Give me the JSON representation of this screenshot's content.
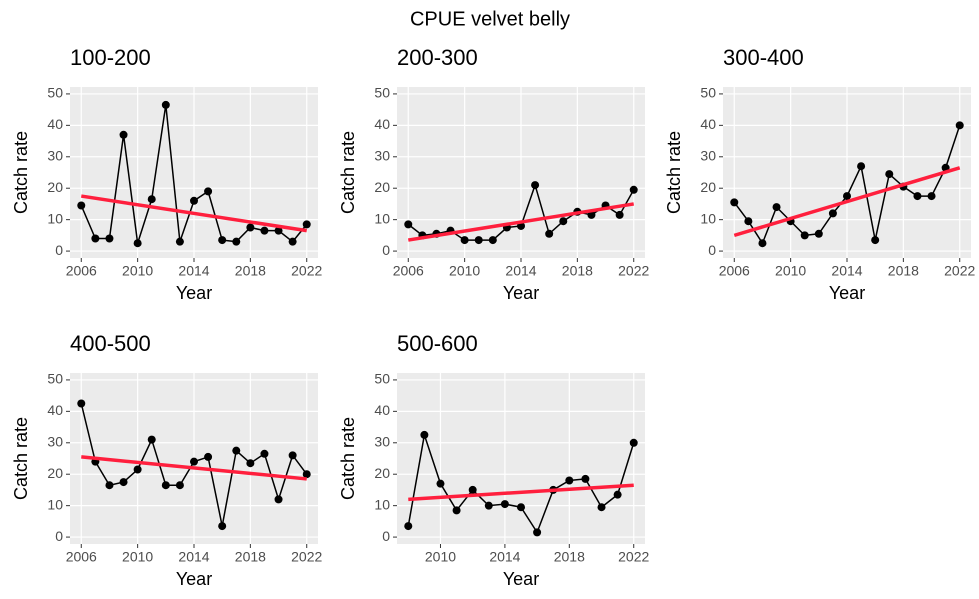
{
  "title": "CPUE velvet belly",
  "chart_data": [
    {
      "type": "line",
      "title": "100-200",
      "xlabel": "Year",
      "ylabel": "Catch rate",
      "x": [
        2006,
        2007,
        2008,
        2009,
        2010,
        2011,
        2012,
        2013,
        2014,
        2015,
        2016,
        2017,
        2018,
        2019,
        2020,
        2021,
        2022
      ],
      "series": [
        {
          "color": "#000000",
          "values": [
            14.5,
            4,
            4,
            37,
            2.5,
            16.5,
            46.5,
            3,
            16,
            19,
            3.5,
            3,
            7.5,
            6.5,
            6.5,
            3,
            8.5
          ]
        }
      ],
      "trend": {
        "color": "#ff1f3d",
        "x": [
          2006,
          2022
        ],
        "values": [
          17.5,
          6.5
        ]
      },
      "xlim": [
        2005.2,
        2022.8
      ],
      "xticks": [
        2006,
        2010,
        2014,
        2018,
        2022
      ],
      "ylim": [
        -2.2,
        52.2
      ],
      "yticks": [
        0,
        10,
        20,
        30,
        40,
        50
      ],
      "grid": true
    },
    {
      "type": "line",
      "title": "200-300",
      "xlabel": "Year",
      "ylabel": "Catch rate",
      "x": [
        2006,
        2007,
        2008,
        2009,
        2010,
        2011,
        2012,
        2013,
        2014,
        2015,
        2016,
        2017,
        2018,
        2019,
        2020,
        2021,
        2022
      ],
      "series": [
        {
          "color": "#000000",
          "values": [
            8.5,
            5,
            5.5,
            6.5,
            3.5,
            3.5,
            3.5,
            7.5,
            8,
            21,
            5.5,
            9.5,
            12.5,
            11.5,
            14.5,
            11.5,
            19.5
          ]
        }
      ],
      "trend": {
        "color": "#ff1f3d",
        "x": [
          2006,
          2022
        ],
        "values": [
          3.5,
          15
        ]
      },
      "xlim": [
        2005.2,
        2022.8
      ],
      "xticks": [
        2006,
        2010,
        2014,
        2018,
        2022
      ],
      "ylim": [
        -2.2,
        52.2
      ],
      "yticks": [
        0,
        10,
        20,
        30,
        40,
        50
      ],
      "grid": true
    },
    {
      "type": "line",
      "title": "300-400",
      "xlabel": "Year",
      "ylabel": "Catch rate",
      "x": [
        2006,
        2007,
        2008,
        2009,
        2010,
        2011,
        2012,
        2013,
        2014,
        2015,
        2016,
        2017,
        2018,
        2019,
        2020,
        2021,
        2022
      ],
      "series": [
        {
          "color": "#000000",
          "values": [
            15.5,
            9.5,
            2.5,
            14,
            9.5,
            5,
            5.5,
            12,
            17.5,
            27,
            3.5,
            24.5,
            20.5,
            17.5,
            17.5,
            26.5,
            40
          ]
        }
      ],
      "trend": {
        "color": "#ff1f3d",
        "x": [
          2006,
          2022
        ],
        "values": [
          5,
          26.5
        ]
      },
      "xlim": [
        2005.2,
        2022.8
      ],
      "xticks": [
        2006,
        2010,
        2014,
        2018,
        2022
      ],
      "ylim": [
        -2.2,
        52.2
      ],
      "yticks": [
        0,
        10,
        20,
        30,
        40,
        50
      ],
      "grid": true
    },
    {
      "type": "line",
      "title": "400-500",
      "xlabel": "Year",
      "ylabel": "Catch rate",
      "x": [
        2006,
        2007,
        2008,
        2009,
        2010,
        2011,
        2012,
        2013,
        2014,
        2015,
        2016,
        2017,
        2018,
        2019,
        2020,
        2021,
        2022
      ],
      "series": [
        {
          "color": "#000000",
          "values": [
            42.5,
            24,
            16.5,
            17.5,
            21.5,
            31,
            16.5,
            16.5,
            24,
            25.5,
            3.5,
            27.5,
            23.5,
            26.5,
            12,
            26,
            20
          ]
        }
      ],
      "trend": {
        "color": "#ff1f3d",
        "x": [
          2006,
          2022
        ],
        "values": [
          25.5,
          18.5
        ]
      },
      "xlim": [
        2005.2,
        2022.8
      ],
      "xticks": [
        2006,
        2010,
        2014,
        2018,
        2022
      ],
      "ylim": [
        -2.2,
        52.2
      ],
      "yticks": [
        0,
        10,
        20,
        30,
        40,
        50
      ],
      "grid": true
    },
    {
      "type": "line",
      "title": "500-600",
      "xlabel": "Year",
      "ylabel": "Catch rate",
      "x": [
        2008,
        2009,
        2010,
        2011,
        2012,
        2013,
        2014,
        2015,
        2016,
        2017,
        2018,
        2019,
        2020,
        2021,
        2022
      ],
      "series": [
        {
          "color": "#000000",
          "values": [
            3.5,
            32.5,
            17,
            8.5,
            15,
            10,
            10.5,
            9.5,
            1.5,
            15,
            18,
            18.5,
            9.5,
            13.5,
            30
          ]
        }
      ],
      "trend": {
        "color": "#ff1f3d",
        "x": [
          2008,
          2022
        ],
        "values": [
          12,
          16.5
        ]
      },
      "xlim": [
        2007.3,
        2022.7
      ],
      "xticks": [
        2010,
        2014,
        2018,
        2022
      ],
      "ylim": [
        -2.2,
        52.2
      ],
      "yticks": [
        0,
        10,
        20,
        30,
        40,
        50
      ],
      "grid": true
    }
  ]
}
